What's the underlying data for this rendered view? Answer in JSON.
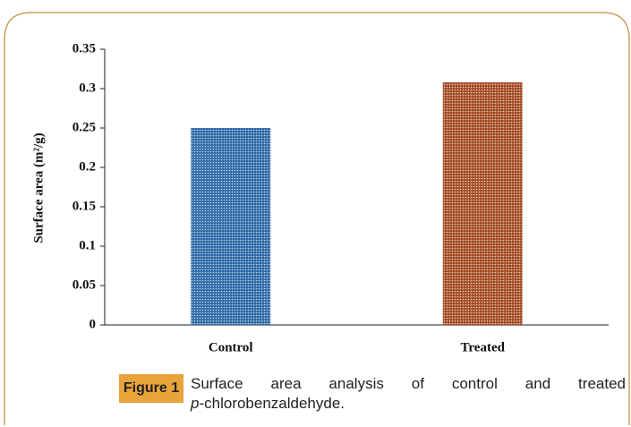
{
  "chart_data": {
    "type": "bar",
    "ylabel": "Surface area (m²/g)",
    "categories": [
      "Control",
      "Treated"
    ],
    "series": [
      {
        "name": "Surface area",
        "colors": [
          "#2f6aa6",
          "#a34b24"
        ],
        "values": [
          0.25,
          0.308
        ]
      }
    ],
    "ylim": [
      0,
      0.35
    ],
    "yticks": [
      0,
      0.05,
      0.1,
      0.15,
      0.2,
      0.25,
      0.3,
      0.35
    ],
    "grid": false
  },
  "caption": {
    "label": "Figure 1",
    "text": "Surface area analysis of control and treated",
    "italic": "p",
    "rest": "-chlorobenzaldehyde."
  }
}
